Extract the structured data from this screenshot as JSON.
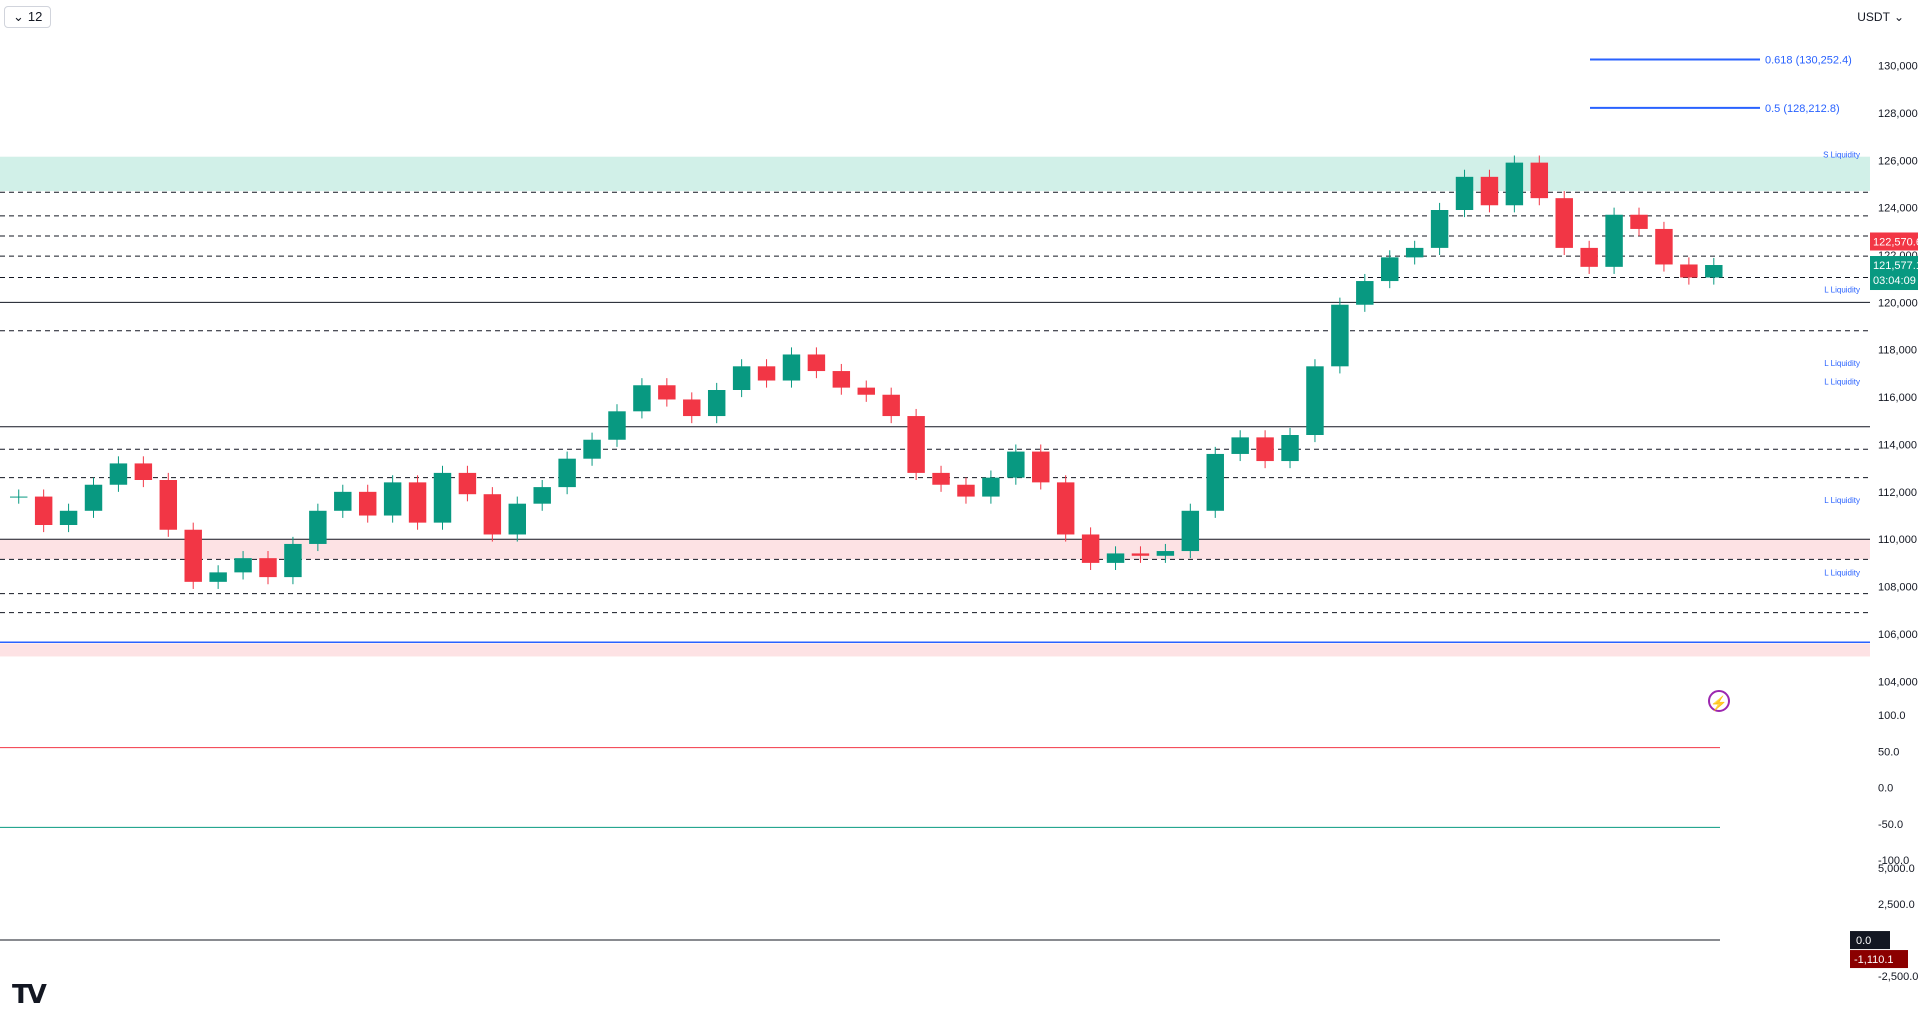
{
  "toolbar": {
    "interval_value": "12",
    "interval_chevron": "chevron-down-icon",
    "currency": "USDT",
    "currency_chevron": "chevron-down-icon"
  },
  "price_axis": {
    "labels": [
      "130,000.0",
      "128,000.0",
      "126,000.0",
      "124,000.0",
      "122,000.0",
      "120,000.0",
      "118,000.0",
      "116,000.0",
      "114,000.0",
      "112,000.0",
      "110,000.0",
      "108,000.0",
      "106,000.0",
      "104,000.0"
    ],
    "ylim": [
      103000,
      131500
    ]
  },
  "badges": {
    "last_close": "122,570.6",
    "current_price": "121,577.1",
    "countdown": "03:04:09",
    "colors": {
      "red": "#f23645",
      "green": "#089981"
    }
  },
  "fib_levels": [
    {
      "label": "0.618 (130,252.4)",
      "price": 130252.4
    },
    {
      "label": "0.5 (128,212.8)",
      "price": 128212.8
    }
  ],
  "liquidity_labels": [
    {
      "label": "S Liquidity",
      "price": 126250
    },
    {
      "label": "L Liquidity",
      "price": 120550
    },
    {
      "label": "L Liquidity",
      "price": 117450
    },
    {
      "label": "L Liquidity",
      "price": 116650
    },
    {
      "label": "L Liquidity",
      "price": 111650
    },
    {
      "label": "L Liquidity",
      "price": 108600
    }
  ],
  "horizontal_levels": {
    "solid_black": [
      120000,
      114750,
      110000
    ],
    "dashed_black": [
      124650,
      123650,
      122800,
      121950,
      121050,
      118800,
      113800,
      112600,
      109150,
      107700,
      106900
    ],
    "solid_blue": [
      105650
    ]
  },
  "zones": {
    "supply": {
      "from": 124700,
      "to": 126150,
      "color": "#d1f0e8"
    },
    "demand": {
      "from": 109150,
      "to": 110000,
      "color": "#fde2e4"
    },
    "bottom_band": {
      "from": 105050,
      "to": 105600,
      "color": "#fde2e4"
    }
  },
  "rsi_axis": {
    "labels": [
      "100.0",
      "50.0",
      "0.0",
      "-50.0",
      "-100.0"
    ],
    "ylim": [
      -100,
      100
    ],
    "upper_band": 55,
    "lower_band": -55
  },
  "macd_axis": {
    "labels": [
      "5,000.0",
      "2,500.0",
      "-2,500.0"
    ],
    "ylim": [
      -4500,
      5200
    ],
    "zero_badge": "0.0",
    "value_badge": "-1,110.1"
  },
  "icons": {
    "alert": "lightning-alert-icon",
    "logo": "tradingview-logo"
  },
  "chart_data": {
    "type": "candlestick",
    "series": [
      {
        "name": "price",
        "note_values": "approximate closes, read off the axis by eye",
        "values": [
          111800,
          110600,
          111200,
          112300,
          113200,
          112500,
          110400,
          108200,
          108600,
          109200,
          108400,
          109800,
          111200,
          112000,
          111000,
          112400,
          110700,
          112800,
          111900,
          110200,
          111500,
          112200,
          113400,
          114200,
          115400,
          116500,
          115900,
          115200,
          116300,
          117300,
          116700,
          117800,
          117100,
          116400,
          116100,
          115200,
          112800,
          112300,
          111800,
          112600,
          113700,
          112400,
          110200,
          109000,
          109400,
          109300,
          109500,
          111200,
          113600,
          114300,
          113300,
          114400,
          117300,
          119900,
          120900,
          121900,
          122300,
          123900,
          125300,
          124100,
          125900,
          124400,
          122300,
          121500,
          123700,
          123100,
          121600,
          121050,
          121577
        ]
      }
    ]
  }
}
